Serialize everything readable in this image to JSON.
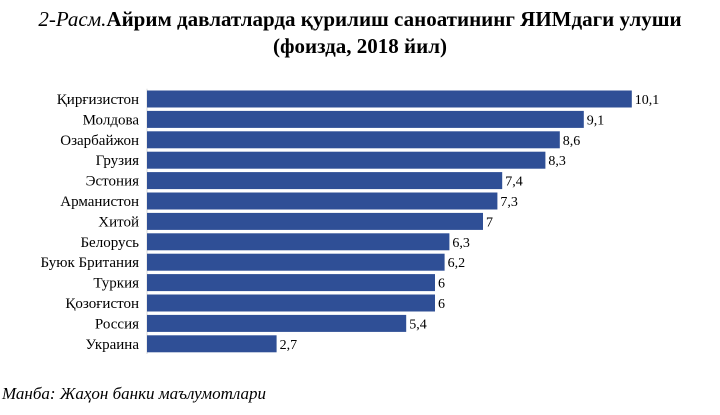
{
  "figure": {
    "label": "2-Расм.",
    "title_line1": "Айрим давлатларда қурилиш саноатининг ЯИМдаги улуши",
    "title_line2": "(фоизда, 2018 йил)",
    "source": "Манба: Жаҳон банки маълумотлари"
  },
  "chart_data": {
    "type": "bar",
    "orientation": "horizontal",
    "categories": [
      "Қирғизистон",
      "Молдова",
      "Озарбайжон",
      "Грузия",
      "Эстония",
      "Арманистон",
      "Хитой",
      "Белорусь",
      "Буюк Британия",
      "Туркия",
      "Қозоғистон",
      "Россия",
      "Украина"
    ],
    "values": [
      10.1,
      9.1,
      8.6,
      8.3,
      7.4,
      7.3,
      7,
      6.3,
      6.2,
      6,
      6,
      5.4,
      2.7
    ],
    "value_labels": [
      "10,1",
      "9,1",
      "8,6",
      "8,3",
      "7,4",
      "7,3",
      "7",
      "6,3",
      "6,2",
      "6",
      "6",
      "5,4",
      "2,7"
    ],
    "bar_color": "#2f4f96",
    "grid": false,
    "legend": "none"
  }
}
